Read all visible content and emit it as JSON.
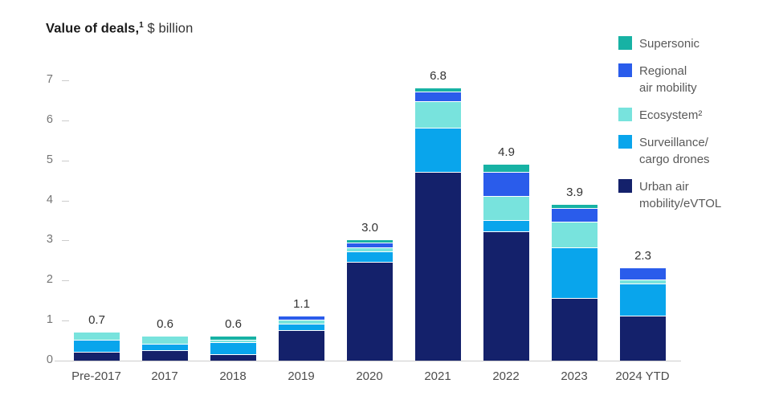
{
  "title": {
    "bold": "Value of deals,",
    "sup": "1",
    "rest": " $ billion"
  },
  "colors": {
    "supersonic": "#17B2A4",
    "regional": "#2A5CEB",
    "ecosystem": "#78E3DD",
    "surveillance": "#09A5EC",
    "urban": "#14216B",
    "axis_line": "#CCCCCC",
    "y_tick_label": "#757575",
    "x_label": "#4D4D4D",
    "data_label": "#333333",
    "legend_text": "#595959"
  },
  "chart_data": {
    "type": "bar",
    "stacked": true,
    "title": "Value of deals, $ billion",
    "xlabel": "",
    "ylabel": "$ billion",
    "ylim": [
      0,
      7
    ],
    "yticks": [
      0,
      1,
      2,
      3,
      4,
      5,
      6,
      7
    ],
    "grid": false,
    "legend_position": "top-right",
    "categories": [
      "Pre-2017",
      "2017",
      "2018",
      "2019",
      "2020",
      "2021",
      "2022",
      "2023",
      "2024 YTD"
    ],
    "series": [
      {
        "name": "Urban air mobility/eVTOL",
        "key": "urban",
        "color": "#14216B",
        "values": [
          0.2,
          0.25,
          0.15,
          0.75,
          2.45,
          4.7,
          3.2,
          1.55,
          1.1
        ]
      },
      {
        "name": "Surveillance/cargo drones",
        "key": "surveillance",
        "color": "#09A5EC",
        "values": [
          0.3,
          0.15,
          0.3,
          0.15,
          0.25,
          1.1,
          0.3,
          1.25,
          0.8
        ]
      },
      {
        "name": "Ecosystem",
        "key": "ecosystem",
        "color": "#78E3DD",
        "values": [
          0.2,
          0.2,
          0.05,
          0.1,
          0.1,
          0.65,
          0.6,
          0.65,
          0.1
        ]
      },
      {
        "name": "Regional air mobility",
        "key": "regional",
        "color": "#2A5CEB",
        "values": [
          0.0,
          0.0,
          0.0,
          0.1,
          0.12,
          0.25,
          0.6,
          0.35,
          0.3
        ]
      },
      {
        "name": "Supersonic",
        "key": "supersonic",
        "color": "#17B2A4",
        "values": [
          0.0,
          0.0,
          0.1,
          0.0,
          0.08,
          0.1,
          0.2,
          0.1,
          0.0
        ]
      }
    ],
    "totals": [
      0.7,
      0.6,
      0.6,
      1.1,
      3.0,
      6.8,
      4.9,
      3.9,
      2.3
    ],
    "total_labels": [
      "0.7",
      "0.6",
      "0.6",
      "1.1",
      "3.0",
      "6.8",
      "4.9",
      "3.9",
      "2.3"
    ],
    "legend": [
      {
        "label": "Supersonic",
        "key": "supersonic"
      },
      {
        "label": "Regional\nair mobility",
        "key": "regional"
      },
      {
        "label": "Ecosystem²",
        "key": "ecosystem"
      },
      {
        "label": "Surveillance/\ncargo drones",
        "key": "surveillance"
      },
      {
        "label": "Urban air\nmobility/eVTOL",
        "key": "urban"
      }
    ]
  }
}
